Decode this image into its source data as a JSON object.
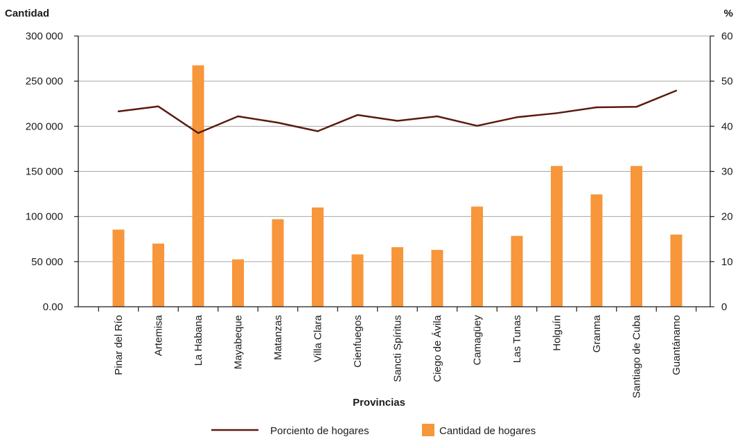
{
  "chart_data": {
    "type": "bar",
    "ylabel": "Cantidad",
    "y2label": "%",
    "xlabel": "Provincias",
    "categories": [
      "Pinar del Río",
      "Artemisa",
      "La Habana",
      "Mayabeque",
      "Matanzas",
      "Villa Clara",
      "Cienfuegos",
      "Sancti Spíritus",
      "Ciego de Ávila",
      "Camagüey",
      "Las Tunas",
      "Holguín",
      "Granma",
      "Santiago de Cuba",
      "Guantánamo"
    ],
    "ylim": [
      0,
      300000
    ],
    "y2lim": [
      0,
      60
    ],
    "y_ticks": [
      0,
      50000,
      100000,
      150000,
      200000,
      250000,
      300000
    ],
    "y_tick_labels": [
      "0.00",
      "50 000",
      "100 000",
      "150 000",
      "200 000",
      "250 000",
      "300 000"
    ],
    "y2_ticks": [
      0,
      10,
      20,
      30,
      40,
      50,
      60
    ],
    "y2_tick_labels": [
      "0",
      "10",
      "20",
      "30",
      "40",
      "50",
      "60"
    ],
    "grid": true,
    "legend_position": "bottom",
    "series": [
      {
        "name": "Cantidad de hogares",
        "kind": "bar",
        "axis": "left",
        "color": "#f7963a",
        "values": [
          85500,
          70000,
          267500,
          52500,
          97000,
          110000,
          58000,
          66000,
          63000,
          111000,
          78500,
          156000,
          124500,
          156000,
          80000
        ]
      },
      {
        "name": "Porciento de hogares",
        "kind": "line",
        "axis": "right",
        "color": "#5a1a0e",
        "values": [
          43.3,
          44.4,
          38.5,
          42.2,
          40.8,
          38.9,
          42.5,
          41.2,
          42.2,
          40.1,
          42.0,
          42.9,
          44.2,
          44.3,
          47.9
        ]
      }
    ]
  }
}
